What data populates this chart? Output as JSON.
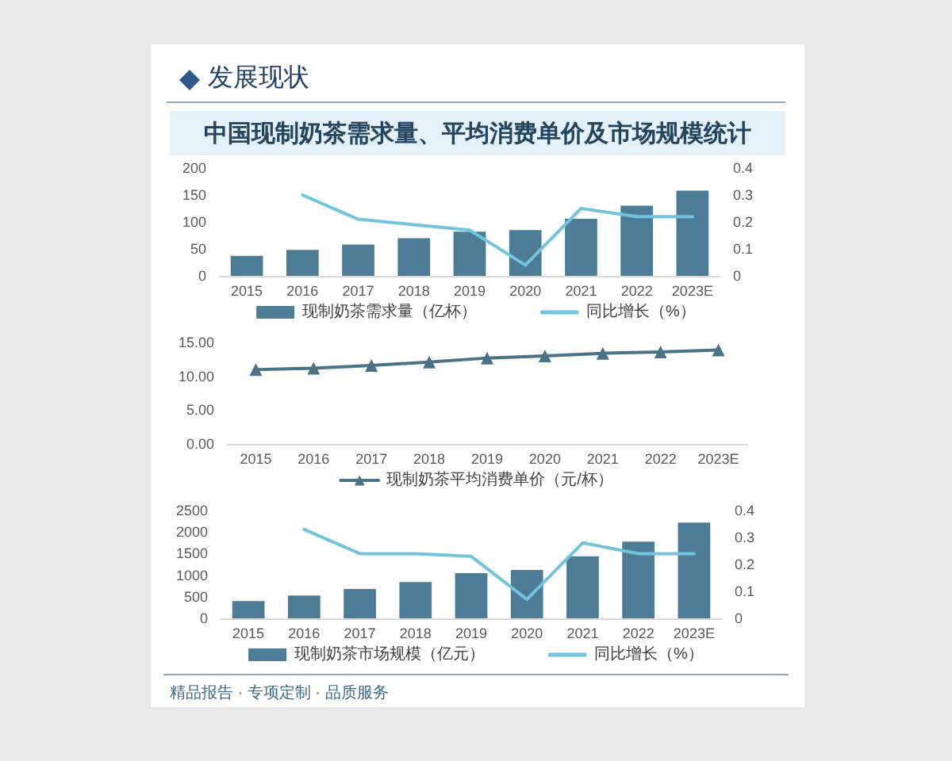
{
  "chart_data": [
    {
      "type": "bar",
      "title": "中国现制奶茶需求量、平均消费单价及市场规模统计",
      "annotations": [
        "发展现状"
      ],
      "categories": [
        "2015",
        "2016",
        "2017",
        "2018",
        "2019",
        "2020",
        "2021",
        "2022",
        "2023E"
      ],
      "series": [
        {
          "name": "现制奶茶需求量（亿杯）",
          "color": "#4d7c96",
          "values": [
            37,
            48,
            58,
            70,
            82,
            85,
            106,
            130,
            158
          ]
        },
        {
          "name": "同比增长（%）",
          "type": "line",
          "axis": "y2",
          "color": "#72c4dd",
          "values": [
            null,
            0.3,
            0.21,
            0.19,
            0.17,
            0.04,
            0.25,
            0.22,
            0.22
          ]
        }
      ],
      "ylim": [
        0,
        200
      ],
      "yticks": [
        0,
        50,
        100,
        150,
        200
      ],
      "y2lim": [
        0,
        0.4
      ],
      "y2ticks": [
        0,
        0.1,
        0.2,
        0.3,
        0.4
      ],
      "legend": "bottom",
      "grid": false,
      "marker": "none",
      "line_style": "solid"
    },
    {
      "type": "line",
      "categories": [
        "2015",
        "2016",
        "2017",
        "2018",
        "2019",
        "2020",
        "2021",
        "2022",
        "2023E"
      ],
      "series": [
        {
          "name": "现制奶茶平均消费单价（元/杯）",
          "color": "#4a7388",
          "values": [
            11.0,
            11.2,
            11.6,
            12.1,
            12.7,
            13.0,
            13.4,
            13.6,
            13.9
          ]
        }
      ],
      "ylim": [
        0,
        15
      ],
      "yticks": [
        {
          "value": 0,
          "label": "0.00"
        },
        {
          "value": 5,
          "label": "5.00"
        },
        {
          "value": 10,
          "label": "10.00"
        },
        {
          "value": 15,
          "label": "15.00"
        }
      ],
      "legend": "bottom",
      "grid": false,
      "marker": "triangle",
      "line_style": "solid"
    },
    {
      "type": "bar",
      "annotations": [
        "精品报告 · 专项定制 · 品质服务"
      ],
      "categories": [
        "2015",
        "2016",
        "2017",
        "2018",
        "2019",
        "2020",
        "2021",
        "2022",
        "2023E"
      ],
      "series": [
        {
          "name": "现制奶茶市场规模（亿元）",
          "color": "#4d7c96",
          "values": [
            400,
            530,
            680,
            840,
            1050,
            1120,
            1440,
            1780,
            2220
          ]
        },
        {
          "name": "同比增长（%）",
          "type": "line",
          "axis": "y2",
          "color": "#72c4dd",
          "values": [
            null,
            0.33,
            0.24,
            0.24,
            0.23,
            0.07,
            0.28,
            0.24,
            0.24
          ]
        }
      ],
      "ylim": [
        0,
        2500
      ],
      "yticks": [
        0,
        500,
        1000,
        1500,
        2000,
        2500
      ],
      "y2lim": [
        0,
        0.4
      ],
      "y2ticks": [
        0,
        0.1,
        0.2,
        0.3,
        0.4
      ],
      "legend": "bottom",
      "grid": false,
      "marker": "none",
      "line_style": "solid"
    }
  ]
}
